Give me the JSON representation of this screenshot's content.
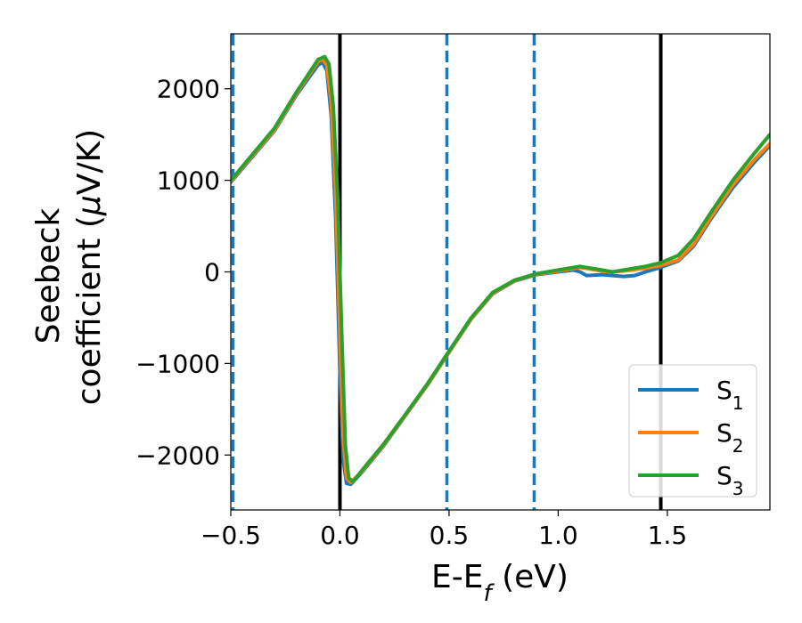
{
  "chart_data": {
    "type": "line",
    "title": "",
    "xlabel": "E-E$_f$ (eV)",
    "ylabel_line1": "Seebeck",
    "ylabel_line2": "coefficient  ($\\mu$V/K)",
    "xlim": [
      -0.5,
      1.97
    ],
    "ylim": [
      -2600,
      2600
    ],
    "xticks": [
      -0.5,
      0.0,
      0.5,
      1.0,
      1.5
    ],
    "xtick_labels": [
      "−0.5",
      "0.0",
      "0.5",
      "1.0",
      "1.5"
    ],
    "yticks": [
      -2000,
      -1000,
      0,
      1000,
      2000
    ],
    "ytick_labels": [
      "−2000",
      "−1000",
      "0",
      "1000",
      "2000"
    ],
    "grid": false,
    "legend_position": "bottom-right",
    "vertical_lines": [
      {
        "x": -0.49,
        "style": "dashed",
        "color": "#1f77b4"
      },
      {
        "x": 0.0,
        "style": "solid",
        "color": "#000000"
      },
      {
        "x": 0.49,
        "style": "dashed",
        "color": "#1f77b4"
      },
      {
        "x": 0.89,
        "style": "dashed",
        "color": "#1f77b4"
      },
      {
        "x": 1.47,
        "style": "solid",
        "color": "#000000"
      }
    ],
    "series": [
      {
        "name": "S",
        "subscript": "1",
        "color": "#1f77b4",
        "points": [
          [
            -0.5,
            980
          ],
          [
            -0.3,
            1540
          ],
          [
            -0.2,
            1930
          ],
          [
            -0.1,
            2260
          ],
          [
            -0.08,
            2290
          ],
          [
            -0.06,
            2200
          ],
          [
            -0.04,
            1700
          ],
          [
            -0.02,
            600
          ],
          [
            0.0,
            -1100
          ],
          [
            0.015,
            -2050
          ],
          [
            0.03,
            -2310
          ],
          [
            0.05,
            -2320
          ],
          [
            0.1,
            -2190
          ],
          [
            0.2,
            -1900
          ],
          [
            0.3,
            -1570
          ],
          [
            0.4,
            -1240
          ],
          [
            0.5,
            -880
          ],
          [
            0.6,
            -520
          ],
          [
            0.7,
            -240
          ],
          [
            0.8,
            -100
          ],
          [
            0.9,
            -30
          ],
          [
            1.0,
            0
          ],
          [
            1.07,
            20
          ],
          [
            1.1,
            0
          ],
          [
            1.13,
            -40
          ],
          [
            1.2,
            -30
          ],
          [
            1.3,
            -50
          ],
          [
            1.35,
            -40
          ],
          [
            1.4,
            0
          ],
          [
            1.47,
            50
          ],
          [
            1.55,
            120
          ],
          [
            1.62,
            280
          ],
          [
            1.7,
            580
          ],
          [
            1.8,
            920
          ],
          [
            1.9,
            1200
          ],
          [
            1.97,
            1380
          ]
        ]
      },
      {
        "name": "S",
        "subscript": "2",
        "color": "#ff7f0e",
        "points": [
          [
            -0.5,
            990
          ],
          [
            -0.3,
            1550
          ],
          [
            -0.2,
            1945
          ],
          [
            -0.1,
            2300
          ],
          [
            -0.08,
            2320
          ],
          [
            -0.06,
            2260
          ],
          [
            -0.04,
            1850
          ],
          [
            -0.02,
            900
          ],
          [
            0.0,
            -700
          ],
          [
            0.015,
            -1800
          ],
          [
            0.03,
            -2250
          ],
          [
            0.05,
            -2300
          ],
          [
            0.1,
            -2180
          ],
          [
            0.2,
            -1890
          ],
          [
            0.3,
            -1565
          ],
          [
            0.4,
            -1235
          ],
          [
            0.5,
            -875
          ],
          [
            0.6,
            -515
          ],
          [
            0.7,
            -235
          ],
          [
            0.8,
            -95
          ],
          [
            0.9,
            -25
          ],
          [
            1.0,
            10
          ],
          [
            1.1,
            50
          ],
          [
            1.2,
            10
          ],
          [
            1.25,
            0
          ],
          [
            1.3,
            10
          ],
          [
            1.4,
            40
          ],
          [
            1.47,
            70
          ],
          [
            1.55,
            130
          ],
          [
            1.62,
            300
          ],
          [
            1.7,
            600
          ],
          [
            1.8,
            950
          ],
          [
            1.9,
            1230
          ],
          [
            1.97,
            1400
          ]
        ]
      },
      {
        "name": "S",
        "subscript": "3",
        "color": "#2ca02c",
        "points": [
          [
            -0.5,
            1000
          ],
          [
            -0.3,
            1570
          ],
          [
            -0.2,
            1960
          ],
          [
            -0.1,
            2320
          ],
          [
            -0.07,
            2350
          ],
          [
            -0.05,
            2270
          ],
          [
            -0.03,
            1800
          ],
          [
            -0.01,
            800
          ],
          [
            0.01,
            -800
          ],
          [
            0.025,
            -1900
          ],
          [
            0.04,
            -2250
          ],
          [
            0.06,
            -2290
          ],
          [
            0.1,
            -2170
          ],
          [
            0.2,
            -1880
          ],
          [
            0.3,
            -1555
          ],
          [
            0.4,
            -1225
          ],
          [
            0.5,
            -865
          ],
          [
            0.6,
            -505
          ],
          [
            0.7,
            -225
          ],
          [
            0.8,
            -90
          ],
          [
            0.9,
            -20
          ],
          [
            1.0,
            20
          ],
          [
            1.1,
            60
          ],
          [
            1.2,
            20
          ],
          [
            1.25,
            0
          ],
          [
            1.3,
            20
          ],
          [
            1.4,
            60
          ],
          [
            1.47,
            100
          ],
          [
            1.55,
            180
          ],
          [
            1.62,
            360
          ],
          [
            1.7,
            650
          ],
          [
            1.8,
            1000
          ],
          [
            1.9,
            1300
          ],
          [
            1.97,
            1500
          ]
        ]
      }
    ]
  }
}
